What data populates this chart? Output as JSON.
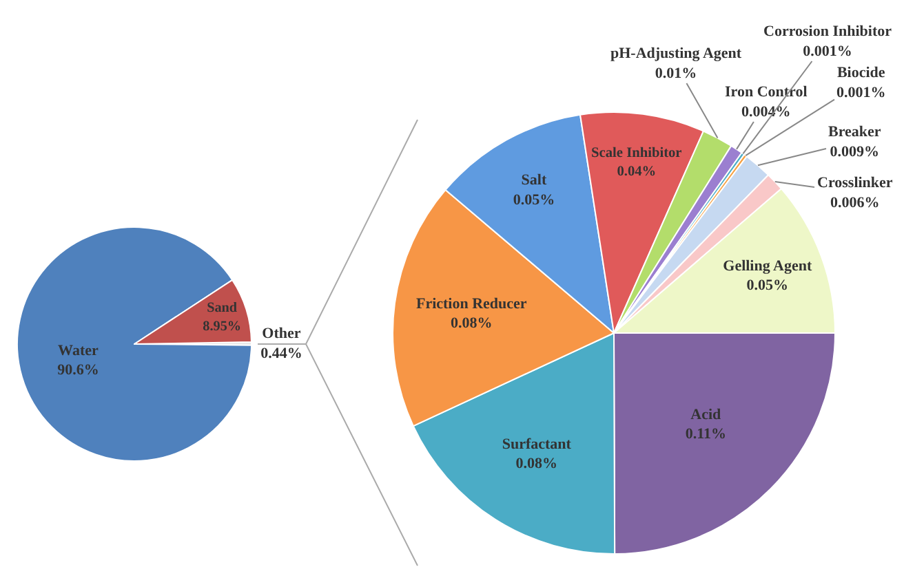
{
  "chart_data": [
    {
      "type": "pie",
      "categories": [
        "Other",
        "Water",
        "Sand"
      ],
      "values": [
        0.44,
        90.6,
        8.95
      ],
      "colors": [
        "#e4e4e4",
        "#4f81bd",
        "#c0504d"
      ],
      "value_labels": [
        "0.44%",
        "90.6%",
        "8.95%"
      ]
    },
    {
      "type": "pie",
      "categories": [
        "Acid",
        "Surfactant",
        "Friction Reducer",
        "Salt",
        "Scale Inhibitor",
        "pH-Adjusting Agent",
        "Iron Control",
        "Corrosion Inhibitor",
        "Biocide",
        "Breaker",
        "Crosslinker",
        "Gelling Agent"
      ],
      "values": [
        0.11,
        0.08,
        0.08,
        0.05,
        0.04,
        0.01,
        0.004,
        0.001,
        0.001,
        0.009,
        0.006,
        0.05
      ],
      "colors": [
        "#8064a2",
        "#4bacc6",
        "#f79646",
        "#5f9be0",
        "#e05a5a",
        "#b3dd6b",
        "#9b7fd0",
        "#4bacc6",
        "#f7a040",
        "#c6d9f1",
        "#f9c8c8",
        "#eef7c8"
      ],
      "value_labels": [
        "0.11%",
        "0.08%",
        "0.08%",
        "0.05%",
        "0.04%",
        "0.01%",
        "0.004%",
        "0.001%",
        "0.001%",
        "0.009%",
        "0.006%",
        "0.05%"
      ]
    }
  ]
}
